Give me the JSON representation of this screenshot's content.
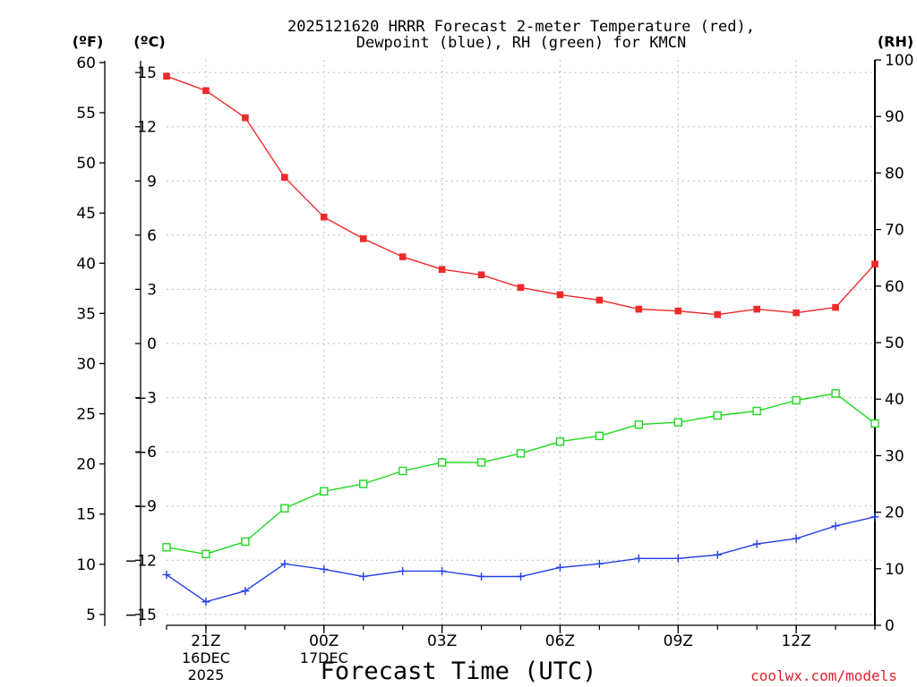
{
  "chart_data": {
    "type": "line",
    "title_line1": "2025121620 HRRR Forecast 2-meter Temperature (red),",
    "title_line2": "Dewpoint (blue), RH (green) for KMCN",
    "xlabel": "Forecast Time (UTC)",
    "credit": "coolwx.com/models",
    "left_f_unit": "(ºF)",
    "left_c_unit": "(ºC)",
    "right_unit": "(RH)",
    "x_range": [
      20,
      38
    ],
    "celsius_range": [
      -15.6,
      15.7
    ],
    "rh_range": [
      0,
      100
    ],
    "fahrenheit_ticks": [
      "60",
      "55",
      "50",
      "45",
      "40",
      "35",
      "30",
      "25",
      "20",
      "15",
      "10",
      "5"
    ],
    "celsius_ticks": [
      "15",
      "12",
      "9",
      "6",
      "3",
      "0",
      "−3",
      "−6",
      "−9",
      "−12",
      "−15"
    ],
    "rh_ticks": [
      "100",
      "90",
      "80",
      "70",
      "60",
      "50",
      "40",
      "30",
      "20",
      "10",
      "0"
    ],
    "x_ticks": [
      {
        "label": "21Z",
        "hour": 21
      },
      {
        "label": "00Z",
        "hour": 24
      },
      {
        "label": "03Z",
        "hour": 27
      },
      {
        "label": "06Z",
        "hour": 30
      },
      {
        "label": "09Z",
        "hour": 33
      },
      {
        "label": "12Z",
        "hour": 36
      }
    ],
    "date_labels": [
      {
        "hour": 21,
        "day": "16DEC",
        "year": "2025"
      },
      {
        "hour": 24,
        "day": "17DEC",
        "year": ""
      }
    ],
    "hours": [
      20,
      21,
      22,
      23,
      24,
      25,
      26,
      27,
      28,
      29,
      30,
      31,
      32,
      33,
      34,
      35,
      36,
      37,
      38
    ],
    "series": [
      {
        "name": "2-meter Temperature",
        "axis": "celsius",
        "color": "#ee2a2a",
        "marker": "filled-square",
        "values": [
          14.8,
          14.0,
          12.5,
          9.2,
          7.0,
          5.8,
          4.8,
          4.1,
          3.8,
          3.1,
          2.7,
          2.4,
          1.9,
          1.8,
          1.6,
          1.9,
          1.7,
          2.0,
          4.4
        ]
      },
      {
        "name": "Dewpoint",
        "axis": "celsius",
        "color": "#2440e8",
        "marker": "plus",
        "values": [
          -12.8,
          -14.3,
          -13.7,
          -12.2,
          -12.5,
          -12.9,
          -12.6,
          -12.6,
          -12.9,
          -12.9,
          -12.4,
          -12.2,
          -11.9,
          -11.9,
          -11.7,
          -11.1,
          -10.8,
          -10.1,
          -9.6
        ]
      },
      {
        "name": "Relative Humidity",
        "axis": "rh",
        "color": "#1fd81f",
        "marker": "open-square",
        "values": [
          13.8,
          12.6,
          14.8,
          20.7,
          23.7,
          25.0,
          27.3,
          28.8,
          28.8,
          30.4,
          32.5,
          33.5,
          35.5,
          35.9,
          37.1,
          37.9,
          39.8,
          41.0,
          35.7
        ]
      }
    ]
  }
}
